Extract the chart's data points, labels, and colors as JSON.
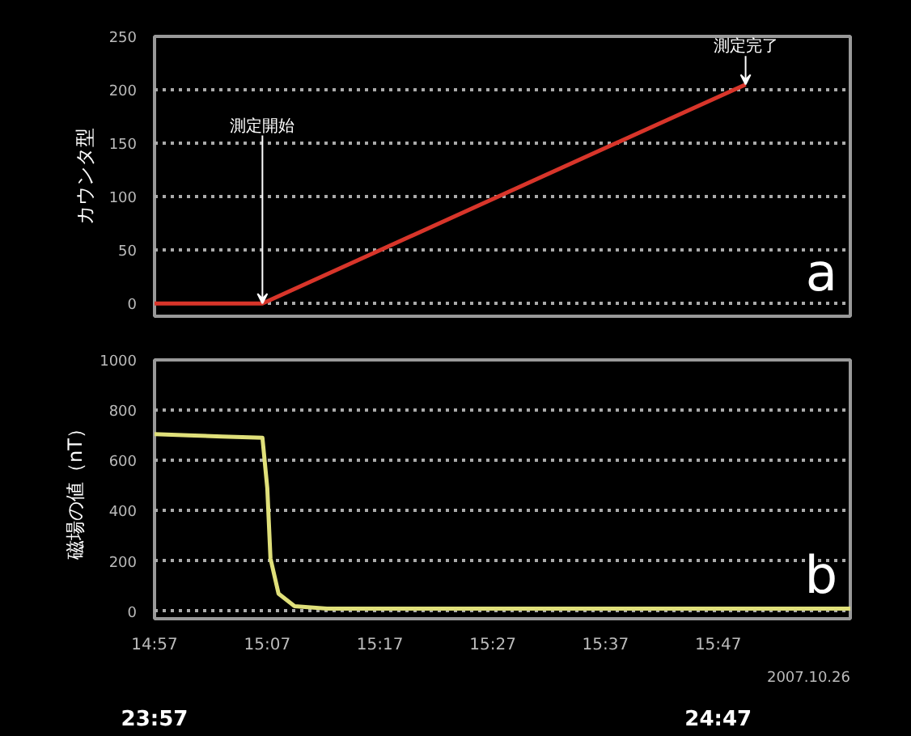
{
  "chart_data": [
    {
      "type": "line",
      "ylabel": "カウンタ型",
      "x": [
        14.95,
        15.1095,
        15.8238
      ],
      "xlim": [
        14.95,
        15.9786
      ],
      "ylim": [
        -12,
        250
      ],
      "yticks": [
        0,
        50,
        100,
        150,
        200,
        250
      ],
      "tick_labels": "y",
      "grid": "y",
      "line_style": "solid",
      "series": [
        {
          "color": "#d8352a",
          "values": [
            0,
            0,
            205
          ]
        }
      ],
      "annotations": [
        {
          "text": "測定開始",
          "x": 15.1095,
          "y": 0
        },
        {
          "text": "測定完了",
          "x": 15.8238,
          "y": 205
        },
        "a"
      ]
    },
    {
      "type": "line",
      "ylabel": "磁場の値（nT）",
      "x": [
        14.95,
        15.0,
        15.05,
        15.1095,
        15.1167,
        15.1214,
        15.1333,
        15.157,
        15.2048,
        15.5,
        15.9786
      ],
      "xlim": [
        14.95,
        15.9786
      ],
      "ylim": [
        -30,
        1000
      ],
      "yticks": [
        0,
        200,
        400,
        600,
        800,
        1000
      ],
      "xticks": [
        {
          "value": 14.95,
          "label": "14:57"
        },
        {
          "value": 15.1167,
          "label": "15:07"
        },
        {
          "value": 15.2833,
          "label": "15:17"
        },
        {
          "value": 15.45,
          "label": "15:27"
        },
        {
          "value": 15.6167,
          "label": "15:37"
        },
        {
          "value": 15.7833,
          "label": "15:47"
        }
      ],
      "grid": "y",
      "line_style": "solid",
      "series": [
        {
          "color": "#e0e07a",
          "values": [
            705,
            700,
            695,
            690,
            490,
            210,
            70,
            20,
            10,
            10,
            10
          ]
        }
      ],
      "annotations": [
        "b",
        "2007.10.26",
        "23:57",
        "24:47"
      ]
    }
  ]
}
